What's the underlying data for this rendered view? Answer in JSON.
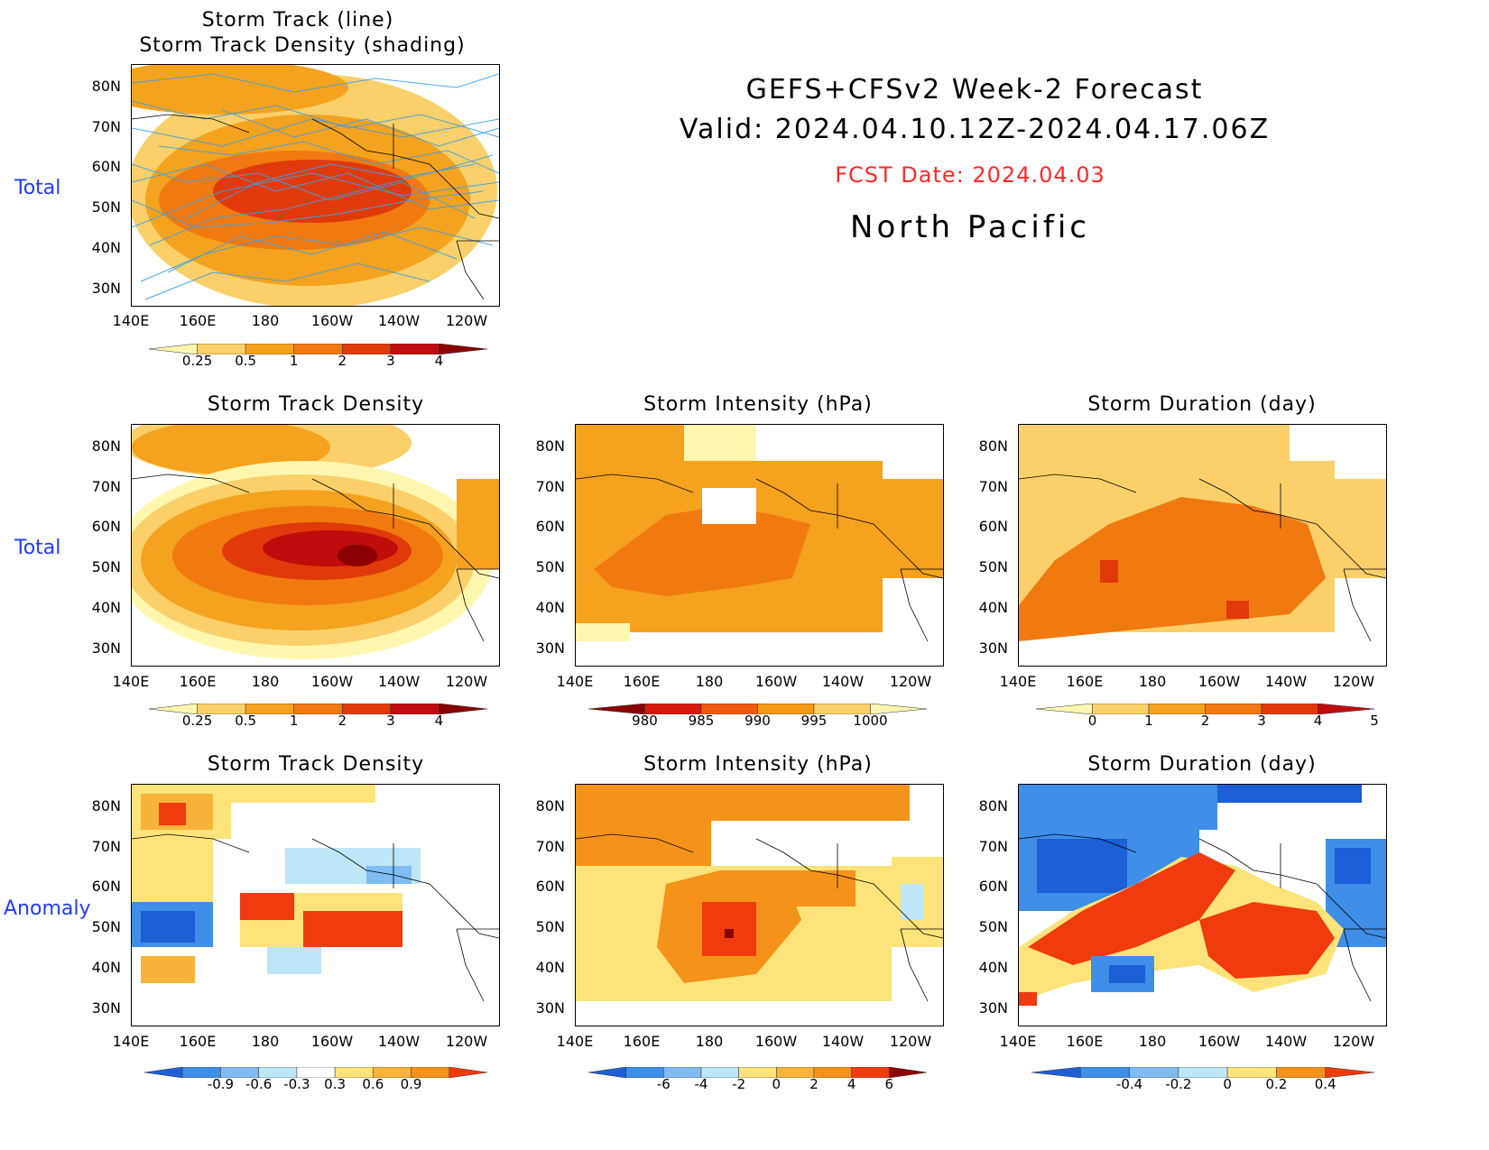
{
  "header": {
    "line1": "GEFS+CFSv2 Week-2 Forecast",
    "line2": "Valid: 2024.04.10.12Z-2024.04.17.06Z",
    "fcst_date": "FCST Date: 2024.04.03",
    "region": "North Pacific",
    "fcst_color": "#ff2a2a"
  },
  "row_labels": {
    "total_top": "Total",
    "total_mid": "Total",
    "anomaly": "Anomaly"
  },
  "axes": {
    "lat_labels": [
      "80N",
      "70N",
      "60N",
      "50N",
      "40N",
      "30N"
    ],
    "lon_labels": [
      "140E",
      "160E",
      "180",
      "160W",
      "140W",
      "120W"
    ]
  },
  "panels": {
    "p0": {
      "title_line1": "Storm Track (line)",
      "title_line2": "Storm Track Density (shading)",
      "icon": "storm-track-map"
    },
    "p1": {
      "title": "Storm Track Density"
    },
    "p2": {
      "title": "Storm Intensity (hPa)"
    },
    "p3": {
      "title": "Storm Duration (day)"
    },
    "p4": {
      "title": "Storm Track Density"
    },
    "p5": {
      "title": "Storm Intensity (hPa)"
    },
    "p6": {
      "title": "Storm Duration (day)"
    }
  },
  "colorbars": {
    "density": {
      "labels": [
        "0.25",
        "0.5",
        "1",
        "2",
        "3",
        "4"
      ],
      "colors": [
        "#fff7b0",
        "#fbd06a",
        "#f5a21e",
        "#f07a10",
        "#e03a0a",
        "#c00c0c",
        "#8a0000"
      ]
    },
    "intensity": {
      "labels": [
        "980",
        "985",
        "990",
        "995",
        "1000"
      ],
      "colors": [
        "#8a0000",
        "#d61a0c",
        "#f05a0e",
        "#f59a14",
        "#fbd06a",
        "#fff7b0"
      ]
    },
    "duration": {
      "labels": [
        "0",
        "1",
        "2",
        "3",
        "4",
        "5"
      ],
      "colors": [
        "#fff7b0",
        "#fbd06a",
        "#f5a21e",
        "#f07a10",
        "#e03a0a",
        "#c00c0c"
      ]
    },
    "anom_density": {
      "labels": [
        "-0.9",
        "-0.6",
        "-0.3",
        "0.3",
        "0.6",
        "0.9"
      ],
      "colors": [
        "#1c5fd6",
        "#3f8ee8",
        "#7fbcf2",
        "#bde6f6",
        "#ffffff",
        "#fde37a",
        "#f8b43a",
        "#f5921a",
        "#f03b0e"
      ]
    },
    "anom_intensity": {
      "labels": [
        "-6",
        "-4",
        "-2",
        "0",
        "2",
        "4",
        "6"
      ],
      "colors": [
        "#1c5fd6",
        "#3f8ee8",
        "#7fbcf2",
        "#bde6f6",
        "#fde37a",
        "#f8b43a",
        "#f5921a",
        "#f03b0e",
        "#8a0000"
      ]
    },
    "anom_duration": {
      "labels": [
        "-0.4",
        "-0.2",
        "0",
        "0.2",
        "0.4"
      ],
      "colors": [
        "#1c5fd6",
        "#3f8ee8",
        "#7fbcf2",
        "#bde6f6",
        "#fde37a",
        "#f5921a",
        "#f03b0e"
      ]
    }
  }
}
